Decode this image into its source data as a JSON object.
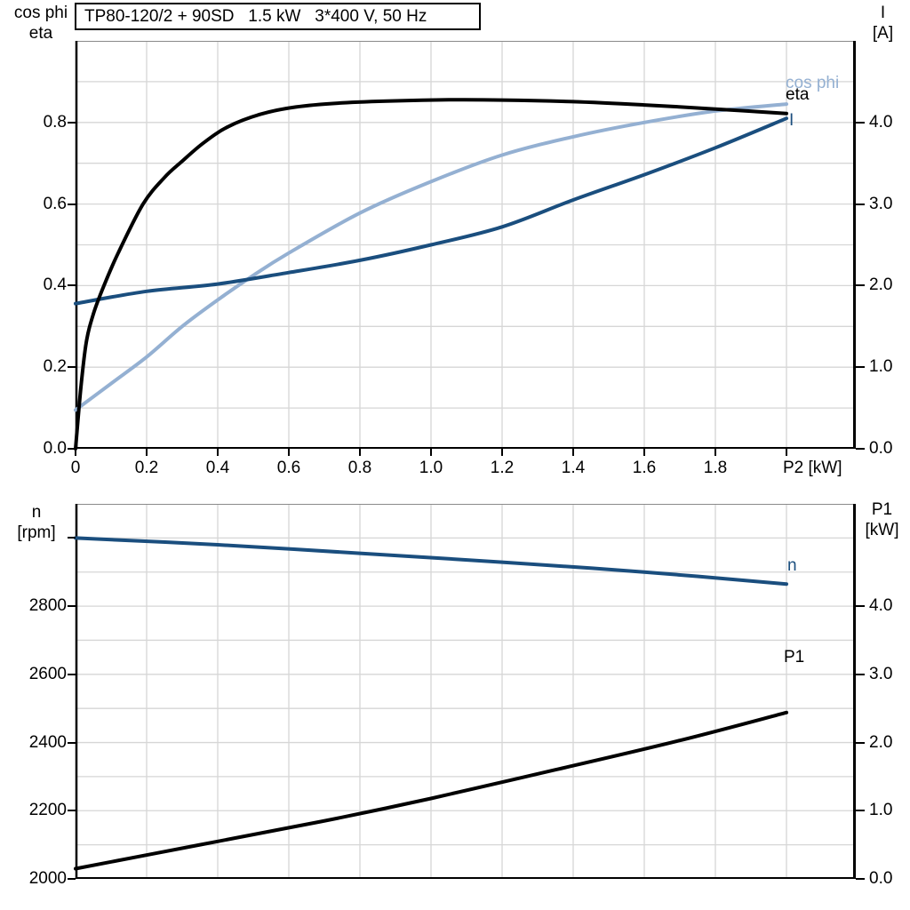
{
  "colors": {
    "black": "#000000",
    "dark_blue": "#1a4e7e",
    "light_blue": "#94b0d2",
    "grid": "#d6d6d6",
    "frame_top": "#8a8a8a",
    "spine": "#000000"
  },
  "chart_data": [
    {
      "type": "line",
      "title": "TP80-120/2 + 90SD   1.5 kW   3*400 V, 50 Hz",
      "x_range": [
        0,
        2.195
      ],
      "left_range": [
        0,
        1.0
      ],
      "right_range": [
        0,
        5.0
      ],
      "x_grid": {
        "step": 0.2,
        "max": 2.0
      },
      "left_grid": {
        "step": 0.1
      },
      "grid": true,
      "legend_position": "right-inside",
      "x_axis": {
        "unit_label": "P2 [kW]",
        "ticks": [
          {
            "v": 0,
            "t": "0"
          },
          {
            "v": 0.2,
            "t": "0.2"
          },
          {
            "v": 0.4,
            "t": "0.4"
          },
          {
            "v": 0.6,
            "t": "0.6"
          },
          {
            "v": 0.8,
            "t": "0.8"
          },
          {
            "v": 1.0,
            "t": "1.0"
          },
          {
            "v": 1.2,
            "t": "1.2"
          },
          {
            "v": 1.4,
            "t": "1.4"
          },
          {
            "v": 1.6,
            "t": "1.6"
          },
          {
            "v": 1.8,
            "t": "1.8"
          },
          {
            "v": 2.0,
            "t": ""
          }
        ]
      },
      "left_axis": {
        "title_lines": [
          "cos phi",
          "eta"
        ],
        "ticks": [
          {
            "v": 0.0,
            "t": "0.0"
          },
          {
            "v": 0.2,
            "t": "0.2"
          },
          {
            "v": 0.4,
            "t": "0.4"
          },
          {
            "v": 0.6,
            "t": "0.6"
          },
          {
            "v": 0.8,
            "t": "0.8"
          }
        ]
      },
      "right_axis": {
        "title_lines": [
          "I",
          "[A]"
        ],
        "ticks": [
          {
            "v": 0,
            "t": "0.0"
          },
          {
            "v": 1,
            "t": "1.0"
          },
          {
            "v": 2,
            "t": "2.0"
          },
          {
            "v": 3,
            "t": "3.0"
          },
          {
            "v": 4,
            "t": "4.0"
          }
        ]
      },
      "series": [
        {
          "id": "cos_phi",
          "label": "cos phi",
          "axis": "left",
          "color": "light_blue",
          "points": [
            [
              0,
              0.095
            ],
            [
              0.1,
              0.16
            ],
            [
              0.2,
              0.225
            ],
            [
              0.3,
              0.3
            ],
            [
              0.4,
              0.365
            ],
            [
              0.5,
              0.425
            ],
            [
              0.6,
              0.48
            ],
            [
              0.8,
              0.578
            ],
            [
              1.0,
              0.655
            ],
            [
              1.2,
              0.72
            ],
            [
              1.4,
              0.765
            ],
            [
              1.6,
              0.8
            ],
            [
              1.8,
              0.828
            ],
            [
              2.0,
              0.845
            ]
          ]
        },
        {
          "id": "I",
          "label": "I",
          "axis": "right",
          "color": "dark_blue",
          "points": [
            [
              0,
              1.78
            ],
            [
              0.2,
              1.93
            ],
            [
              0.4,
              2.02
            ],
            [
              0.6,
              2.16
            ],
            [
              0.8,
              2.31
            ],
            [
              1.0,
              2.5
            ],
            [
              1.2,
              2.72
            ],
            [
              1.4,
              3.05
            ],
            [
              1.6,
              3.36
            ],
            [
              1.8,
              3.69
            ],
            [
              2.0,
              4.05
            ]
          ]
        },
        {
          "id": "eta",
          "label": "eta",
          "axis": "left",
          "color": "black",
          "points": [
            [
              0,
              0
            ],
            [
              0.015,
              0.15
            ],
            [
              0.03,
              0.26
            ],
            [
              0.05,
              0.33
            ],
            [
              0.08,
              0.4
            ],
            [
              0.12,
              0.48
            ],
            [
              0.19,
              0.6
            ],
            [
              0.25,
              0.665
            ],
            [
              0.3,
              0.705
            ],
            [
              0.36,
              0.75
            ],
            [
              0.43,
              0.79
            ],
            [
              0.52,
              0.82
            ],
            [
              0.62,
              0.838
            ],
            [
              0.75,
              0.848
            ],
            [
              0.9,
              0.853
            ],
            [
              1.05,
              0.8555
            ],
            [
              1.2,
              0.855
            ],
            [
              1.4,
              0.851
            ],
            [
              1.6,
              0.843
            ],
            [
              1.8,
              0.833
            ],
            [
              2.0,
              0.822
            ]
          ]
        }
      ]
    },
    {
      "type": "line",
      "title": "",
      "x_range": [
        0,
        2.195
      ],
      "left_range": [
        2000,
        3100
      ],
      "right_range": [
        0,
        5.5
      ],
      "x_grid": {
        "step": 0.2,
        "max": 2.0
      },
      "left_grid": {
        "step": 100
      },
      "grid": true,
      "legend_position": "right-inside",
      "x_axis": {
        "unit_label": "",
        "ticks": []
      },
      "left_axis": {
        "title_lines": [
          "n",
          "[rpm]"
        ],
        "ticks": [
          {
            "v": 2000,
            "t": "2000"
          },
          {
            "v": 2200,
            "t": "2200"
          },
          {
            "v": 2400,
            "t": "2400"
          },
          {
            "v": 2600,
            "t": "2600"
          },
          {
            "v": 2800,
            "t": "2800"
          },
          {
            "v": 3000,
            "t": ""
          }
        ]
      },
      "right_axis": {
        "title_lines": [
          "P1",
          "[kW]"
        ],
        "ticks": [
          {
            "v": 0,
            "t": "0.0"
          },
          {
            "v": 1,
            "t": "1.0"
          },
          {
            "v": 2,
            "t": "2.0"
          },
          {
            "v": 3,
            "t": "3.0"
          },
          {
            "v": 4,
            "t": "4.0"
          }
        ]
      },
      "series": [
        {
          "id": "n",
          "label": "n",
          "axis": "left",
          "color": "dark_blue",
          "points": [
            [
              0,
              3000
            ],
            [
              0.4,
              2980
            ],
            [
              0.8,
              2955
            ],
            [
              1.2,
              2929
            ],
            [
              1.6,
              2900
            ],
            [
              2.0,
              2865
            ]
          ]
        },
        {
          "id": "P1",
          "label": "P1",
          "axis": "right",
          "color": "black",
          "points": [
            [
              0,
              0.15
            ],
            [
              0.35,
              0.5
            ],
            [
              0.69,
              0.84
            ],
            [
              1.0,
              1.18
            ],
            [
              1.35,
              1.6
            ],
            [
              1.7,
              2.03
            ],
            [
              2.0,
              2.44
            ]
          ]
        }
      ]
    }
  ]
}
